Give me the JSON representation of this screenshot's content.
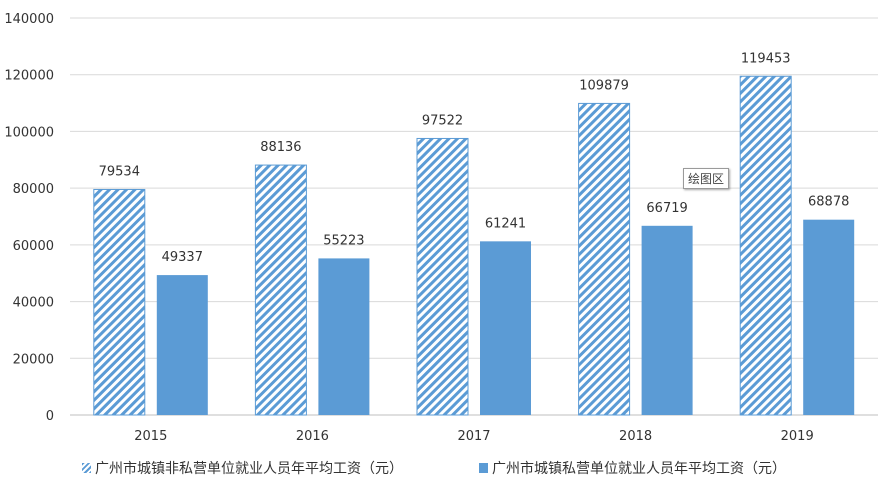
{
  "chart_data": {
    "type": "bar",
    "categories": [
      "2015",
      "2016",
      "2017",
      "2018",
      "2019"
    ],
    "series": [
      {
        "name": "广州市城镇非私营单位就业人员年平均工资（元）",
        "values": [
          79534,
          88136,
          97522,
          109879,
          119453
        ],
        "pattern": "hatched",
        "color": "#5b9bd5"
      },
      {
        "name": "广州市城镇私营单位就业人员年平均工资（元）",
        "values": [
          49337,
          55223,
          61241,
          66719,
          68878
        ],
        "pattern": "solid",
        "color": "#5b9bd5"
      }
    ],
    "ylim": [
      0,
      140000
    ],
    "yticks": [
      0,
      20000,
      40000,
      60000,
      80000,
      100000,
      120000,
      140000
    ],
    "grid": true,
    "legend_position": "bottom",
    "title": "",
    "xlabel": "",
    "ylabel": ""
  },
  "tooltip": {
    "text": "绘图区"
  }
}
